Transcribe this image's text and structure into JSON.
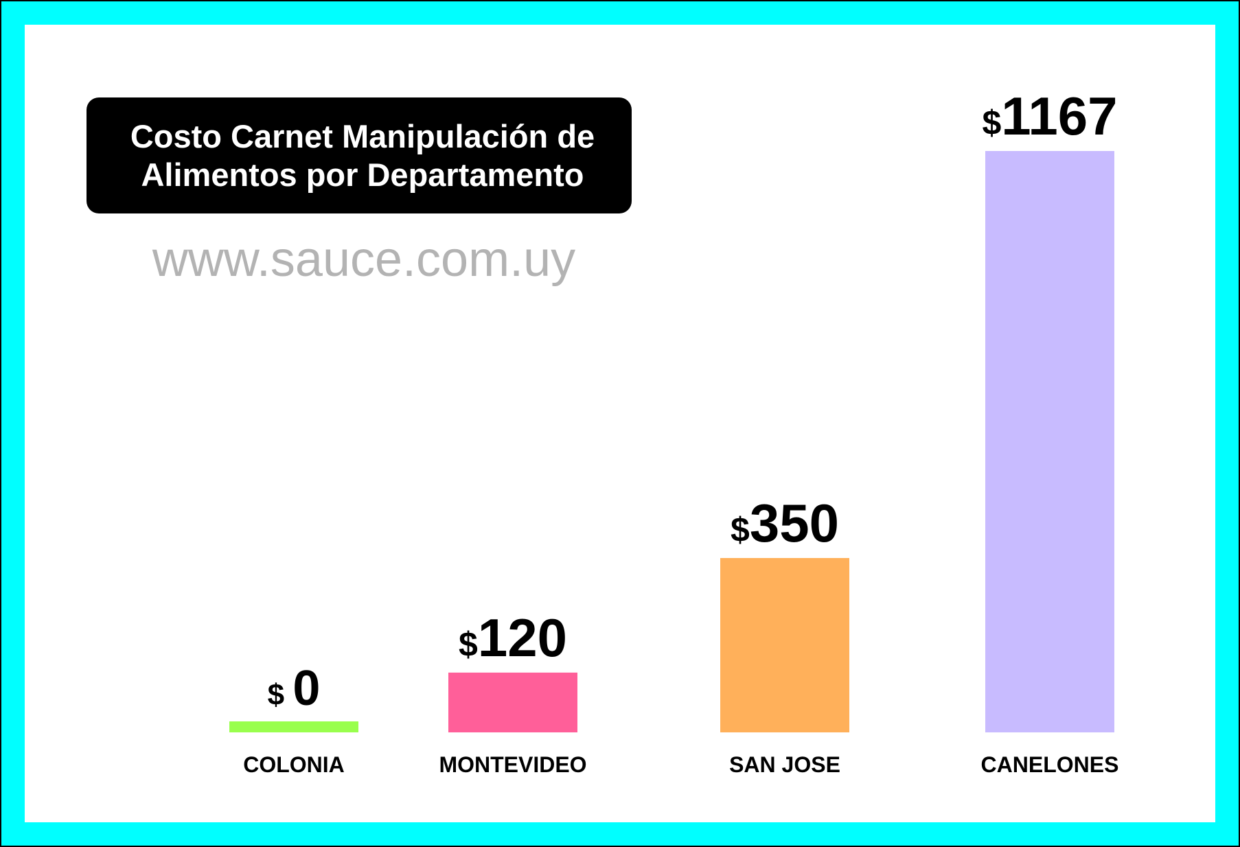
{
  "chart_data": {
    "type": "bar",
    "title_lines": [
      "Costo Carnet Manipulación de",
      "Alimentos por Departamento"
    ],
    "watermark": "www.sauce.com.uy",
    "currency_symbol": "$",
    "categories": [
      "COLONIA",
      "MONTEVIDEO",
      "SAN JOSE",
      "CANELONES"
    ],
    "values": [
      0,
      120,
      350,
      1167
    ],
    "value_labels": [
      "0",
      "120",
      "350",
      "1167"
    ],
    "colors": [
      "#99ff4d",
      "#ff5f99",
      "#ffb05a",
      "#c8bbff"
    ],
    "border_color": "#00ffff",
    "ylim": [
      0,
      1167
    ],
    "grid": false,
    "legend": false
  }
}
